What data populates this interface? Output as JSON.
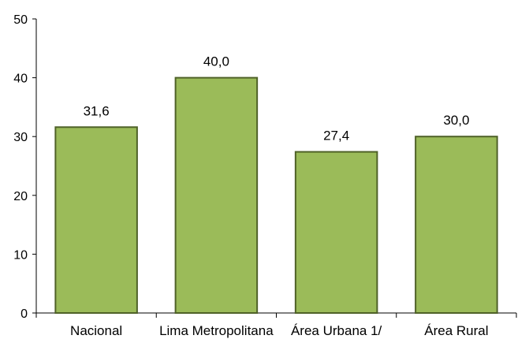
{
  "chart_data": {
    "type": "bar",
    "categories": [
      "Nacional",
      "Lima Metropolitana",
      "Área Urbana 1/",
      "Área Rural"
    ],
    "values": [
      31.6,
      40.0,
      27.4,
      30.0
    ],
    "data_labels": [
      "31,6",
      "40,0",
      "27,4",
      "30,0"
    ],
    "yticks": [
      0,
      10,
      20,
      30,
      40,
      50
    ],
    "ylim": [
      0,
      50
    ],
    "title": "",
    "xlabel": "",
    "ylabel": "",
    "grid": false,
    "legend": "none",
    "colors": {
      "bar_fill": "#9bbb59",
      "bar_stroke": "#4f6228",
      "axis": "#000000"
    }
  }
}
